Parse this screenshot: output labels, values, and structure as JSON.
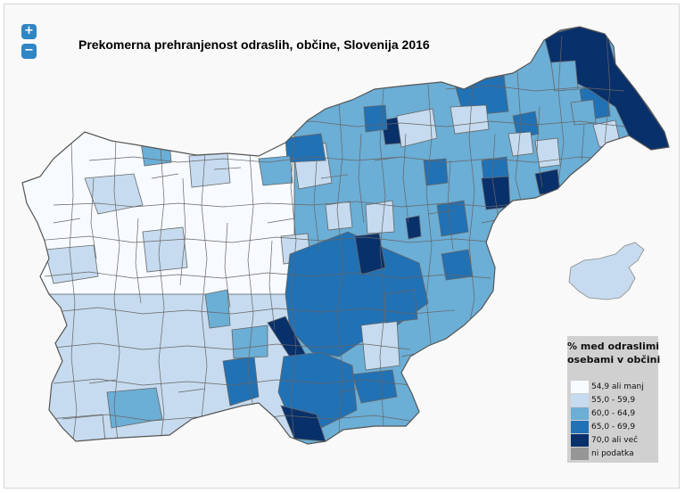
{
  "title": "Prekomerna prehranjenost odraslih, občine, Slovenija 2016",
  "zoom": {
    "in_label": "+",
    "out_label": "−"
  },
  "legend": {
    "title_line1": "% med odraslimi",
    "title_line2": "osebami v občini",
    "items": [
      {
        "label": "54,9 ali manj",
        "color": "#f7fbff"
      },
      {
        "label": "55,0 - 59,9",
        "color": "#c6dbef"
      },
      {
        "label": "60,0 - 64,9",
        "color": "#6baed6"
      },
      {
        "label": "65,0 - 69,9",
        "color": "#2171b5"
      },
      {
        "label": "70,0 ali več",
        "color": "#08306b"
      },
      {
        "label": "ni podatka",
        "color": "#969696"
      }
    ]
  },
  "colors": {
    "c1": "#f7fbff",
    "c2": "#c6dbef",
    "c3": "#6baed6",
    "c4": "#2171b5",
    "c5": "#08306b",
    "border": "#666666",
    "background": "#f9f9f9"
  }
}
